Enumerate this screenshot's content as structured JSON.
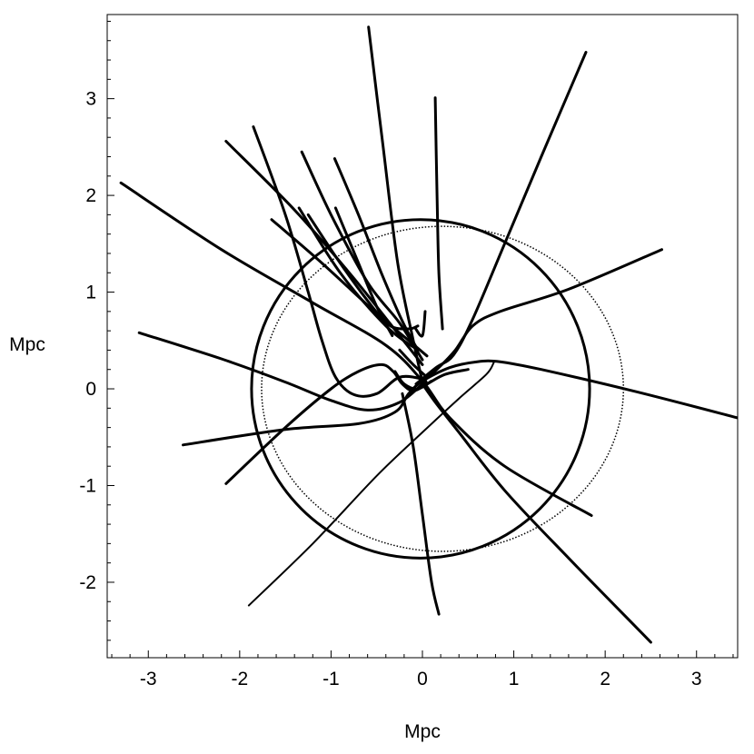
{
  "chart_data": {
    "type": "line",
    "title": "",
    "xlabel": "Mpc",
    "ylabel": "Mpc",
    "xlim": [
      -3.45,
      3.45
    ],
    "ylim": [
      -2.78,
      3.87
    ],
    "x_ticks": [
      -3,
      -2,
      -1,
      0,
      1,
      2,
      3
    ],
    "y_ticks": [
      -2,
      -1,
      0,
      1,
      2,
      3
    ],
    "x_tick_labels": [
      "-3",
      "-2",
      "-1",
      "0",
      "1",
      "2",
      "3"
    ],
    "y_tick_labels": [
      "-2",
      "-1",
      "0",
      "1",
      "2",
      "3"
    ],
    "grid": false,
    "legend": "none",
    "series": [
      {
        "style": "bold",
        "points": [
          [
            -0.59,
            3.74
          ],
          [
            -0.43,
            2.5
          ],
          [
            -0.27,
            1.3
          ],
          [
            -0.1,
            0.5
          ],
          [
            0.0,
            0.07
          ]
        ]
      },
      {
        "style": "bold",
        "points": [
          [
            0.14,
            3.01
          ],
          [
            0.16,
            2.0
          ],
          [
            0.18,
            1.2
          ],
          [
            0.22,
            0.62
          ]
        ]
      },
      {
        "style": "bold",
        "points": [
          [
            1.79,
            3.48
          ],
          [
            1.3,
            2.4
          ],
          [
            0.9,
            1.5
          ],
          [
            0.55,
            0.72
          ],
          [
            0.34,
            0.35
          ],
          [
            0.15,
            0.22
          ],
          [
            -0.07,
            0.05
          ]
        ]
      },
      {
        "style": "bold",
        "points": [
          [
            2.62,
            1.44
          ],
          [
            1.6,
            1.03
          ],
          [
            0.85,
            0.8
          ],
          [
            0.55,
            0.65
          ],
          [
            0.36,
            0.4
          ],
          [
            0.18,
            0.22
          ],
          [
            0.0,
            0.07
          ]
        ]
      },
      {
        "style": "bold",
        "points": [
          [
            -3.3,
            2.13
          ],
          [
            -2.2,
            1.44
          ],
          [
            -1.2,
            0.89
          ],
          [
            -0.4,
            0.45
          ],
          [
            0.0,
            0.08
          ],
          [
            0.3,
            -0.3
          ],
          [
            0.9,
            -0.8
          ],
          [
            1.85,
            -1.31
          ]
        ]
      },
      {
        "style": "bold",
        "points": [
          [
            -2.15,
            2.56
          ],
          [
            -1.4,
            1.85
          ],
          [
            -0.8,
            1.2
          ],
          [
            -0.35,
            0.67
          ],
          [
            0.0,
            0.25
          ]
        ]
      },
      {
        "style": "bold",
        "points": [
          [
            -1.85,
            2.71
          ],
          [
            -1.5,
            1.8
          ],
          [
            -1.25,
            1.0
          ],
          [
            -1.1,
            0.5
          ],
          [
            -0.95,
            0.12
          ],
          [
            -0.75,
            -0.06
          ],
          [
            -0.5,
            -0.05
          ],
          [
            -0.25,
            0.12
          ],
          [
            0.0,
            0.1
          ],
          [
            0.05,
            0.05
          ]
        ]
      },
      {
        "style": "bold",
        "points": [
          [
            -1.32,
            2.45
          ],
          [
            -1.0,
            1.8
          ],
          [
            -0.6,
            1.1
          ],
          [
            -0.25,
            0.68
          ],
          [
            0.0,
            0.3
          ]
        ]
      },
      {
        "style": "bold",
        "points": [
          [
            -0.96,
            2.38
          ],
          [
            -0.7,
            1.8
          ],
          [
            -0.45,
            1.2
          ],
          [
            -0.22,
            0.7
          ],
          [
            -0.05,
            0.4
          ]
        ]
      },
      {
        "style": "bold",
        "points": [
          [
            -1.35,
            1.87
          ],
          [
            -0.9,
            1.2
          ],
          [
            -0.4,
            0.65
          ],
          [
            -0.05,
            0.4
          ]
        ]
      },
      {
        "style": "bold",
        "points": [
          [
            -1.65,
            1.75
          ],
          [
            -1.1,
            1.3
          ],
          [
            -0.5,
            0.78
          ],
          [
            -0.15,
            0.5
          ],
          [
            0.05,
            0.34
          ]
        ]
      },
      {
        "style": "bold",
        "points": [
          [
            -1.25,
            1.8
          ],
          [
            -0.9,
            1.3
          ],
          [
            -0.55,
            0.85
          ],
          [
            -0.35,
            0.65
          ],
          [
            -0.15,
            0.62
          ],
          [
            -0.05,
            0.65
          ]
        ]
      },
      {
        "style": "bold",
        "points": [
          [
            -0.95,
            1.87
          ],
          [
            -0.7,
            1.3
          ],
          [
            -0.5,
            0.85
          ],
          [
            -0.33,
            0.55
          ]
        ]
      },
      {
        "style": "bold",
        "points": [
          [
            -3.1,
            0.58
          ],
          [
            -2.2,
            0.31
          ],
          [
            -1.5,
            0.07
          ],
          [
            -1.0,
            -0.12
          ],
          [
            -0.6,
            -0.22
          ],
          [
            -0.25,
            -0.14
          ],
          [
            0.0,
            0.05
          ]
        ]
      },
      {
        "style": "bold",
        "points": [
          [
            -2.62,
            -0.58
          ],
          [
            -1.5,
            -0.42
          ],
          [
            -0.7,
            -0.36
          ],
          [
            -0.3,
            -0.24
          ],
          [
            -0.15,
            -0.05
          ],
          [
            0.0,
            0.08
          ],
          [
            0.3,
            0.22
          ],
          [
            0.6,
            0.28
          ],
          [
            0.85,
            0.28
          ],
          [
            1.3,
            0.2
          ],
          [
            2.3,
            -0.02
          ],
          [
            3.45,
            -0.3
          ]
        ]
      },
      {
        "style": "bold",
        "points": [
          [
            -2.15,
            -0.98
          ],
          [
            -1.5,
            -0.4
          ],
          [
            -1.0,
            0.0
          ],
          [
            -0.7,
            0.18
          ],
          [
            -0.45,
            0.25
          ],
          [
            -0.32,
            0.18
          ],
          [
            -0.22,
            0.05
          ],
          [
            -0.1,
            -0.02
          ],
          [
            0.05,
            0.05
          ],
          [
            0.25,
            0.15
          ],
          [
            0.5,
            0.2
          ]
        ]
      },
      {
        "style": "bold",
        "points": [
          [
            -0.22,
            -0.05
          ],
          [
            -0.1,
            -0.6
          ],
          [
            0.0,
            -1.3
          ],
          [
            0.1,
            -2.0
          ],
          [
            0.18,
            -2.33
          ]
        ]
      },
      {
        "style": "bold",
        "points": [
          [
            2.5,
            -2.62
          ],
          [
            1.6,
            -1.75
          ],
          [
            0.9,
            -1.05
          ],
          [
            0.4,
            -0.45
          ],
          [
            0.15,
            -0.15
          ],
          [
            0.0,
            0.05
          ]
        ]
      },
      {
        "style": "bold",
        "points": [
          [
            -0.3,
            0.18
          ],
          [
            -0.2,
            0.05
          ],
          [
            -0.05,
            0.0
          ],
          [
            0.1,
            0.08
          ]
        ]
      },
      {
        "style": "bold",
        "points": [
          [
            -0.08,
            0.63
          ],
          [
            0.0,
            0.55
          ],
          [
            0.03,
            0.8
          ]
        ]
      },
      {
        "style": "bold",
        "points": [
          [
            -0.25,
            0.4
          ],
          [
            -0.1,
            0.25
          ],
          [
            0.05,
            0.12
          ]
        ]
      },
      {
        "style": "thin",
        "points": [
          [
            -1.9,
            -2.24
          ],
          [
            -1.2,
            -1.6
          ],
          [
            -0.5,
            -0.9
          ],
          [
            0.0,
            -0.45
          ],
          [
            0.4,
            -0.1
          ],
          [
            0.7,
            0.15
          ],
          [
            0.78,
            0.27
          ]
        ]
      }
    ],
    "shapes": [
      {
        "kind": "circle",
        "style": "bold",
        "cx": -0.02,
        "cy": 0.0,
        "rx": 1.85,
        "ry": 1.75
      },
      {
        "kind": "circle",
        "style": "dotted",
        "cx": 0.22,
        "cy": 0.0,
        "rx": 1.98,
        "ry": 1.68
      }
    ]
  }
}
